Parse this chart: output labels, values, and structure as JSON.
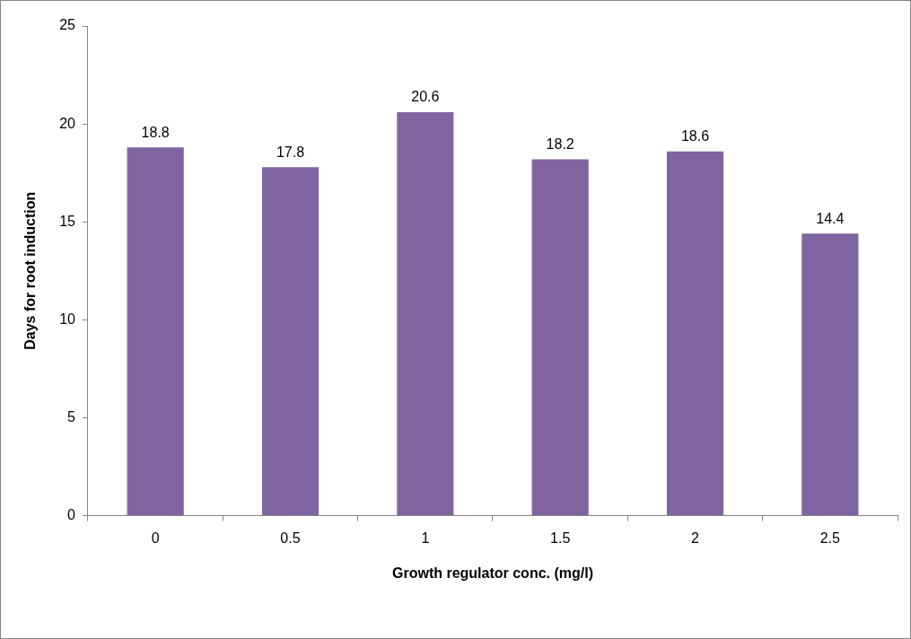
{
  "chart_data": {
    "type": "bar",
    "xlabel": "Growth regulator conc. (mg/l)",
    "ylabel": "Days for root induction",
    "categories": [
      "0",
      "0.5",
      "1",
      "1.5",
      "2",
      "2.5"
    ],
    "values": [
      18.8,
      17.8,
      20.6,
      18.2,
      18.6,
      14.4
    ],
    "color": "#8064a2",
    "ylim": [
      0,
      25
    ],
    "yticks": [
      0,
      5,
      10,
      15,
      20,
      25
    ],
    "grid": false,
    "legend": false,
    "data_labels": true
  }
}
